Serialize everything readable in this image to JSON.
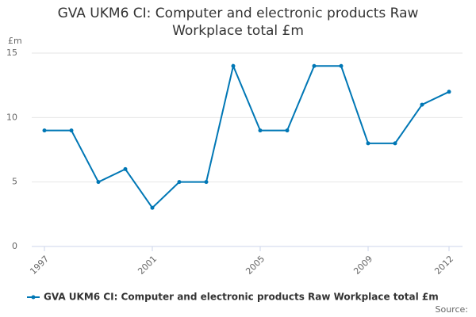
{
  "chart_data": {
    "type": "line",
    "title": "GVA UKM6 CI: Computer and electronic products Raw Workplace total £m",
    "y_label": "£m",
    "x": [
      1997,
      1998,
      1999,
      2000,
      2001,
      2002,
      2003,
      2004,
      2005,
      2006,
      2007,
      2008,
      2009,
      2010,
      2011,
      2012
    ],
    "series": [
      {
        "name": "GVA UKM6 CI: Computer and electronic products Raw Workplace total £m",
        "color": "#0077b5",
        "values": [
          9,
          9,
          5,
          6,
          3,
          5,
          5,
          14,
          9,
          9,
          14,
          14,
          8,
          8,
          11,
          12
        ]
      }
    ],
    "xlim": [
      1997,
      2012
    ],
    "xticks": [
      1997,
      2001,
      2005,
      2009,
      2012
    ],
    "ylim": [
      0,
      15
    ],
    "yticks": [
      0,
      5,
      10,
      15
    ],
    "grid": true,
    "legend": "bottom",
    "source": "Source:"
  }
}
